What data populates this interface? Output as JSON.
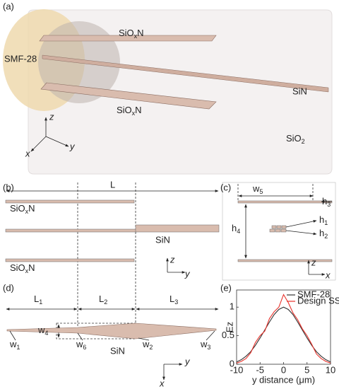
{
  "panel_labels": [
    "(a)",
    "(b)",
    "(c)",
    "(d)",
    "(e)"
  ],
  "panel_a": {
    "top_slab": [
      "SiO",
      "x",
      "N"
    ],
    "fiber": "SMF-28",
    "core": "SiN",
    "bottom_slab": [
      "SiO",
      "x",
      "N"
    ],
    "cladding": [
      "SiO",
      "2"
    ],
    "axes": [
      "z",
      "y",
      "x"
    ]
  },
  "panel_b": {
    "length": "L",
    "top_slab": [
      "SiO",
      "x",
      "N"
    ],
    "core": "SiN",
    "bottom_slab": [
      "SiO",
      "x",
      "N"
    ],
    "axes": [
      "z",
      "y"
    ]
  },
  "panel_c": {
    "width": [
      "w",
      "5"
    ],
    "h3": [
      "h",
      "3"
    ],
    "h4": [
      "h",
      "4"
    ],
    "h1": [
      "h",
      "1"
    ],
    "h2": [
      "h",
      "2"
    ],
    "axes": [
      "z",
      "x"
    ]
  },
  "panel_d": {
    "l1": [
      "L",
      "1"
    ],
    "l2": [
      "L",
      "2"
    ],
    "l3": [
      "L",
      "3"
    ],
    "w4": [
      "w",
      "4"
    ],
    "w1": [
      "w",
      "1"
    ],
    "w6": [
      "w",
      "6"
    ],
    "w2": [
      "w",
      "2"
    ],
    "w3": [
      "w",
      "3"
    ],
    "material": "SiN",
    "axes": [
      "x",
      "y"
    ]
  },
  "chart_data": {
    "type": "line",
    "y_label": "Ez",
    "x_label": "y distance (μm)",
    "x": [
      -10,
      -9,
      -8,
      -7,
      -6,
      -5,
      -4,
      -3,
      -2,
      -1,
      0,
      1,
      2,
      3,
      4,
      5,
      6,
      7,
      8,
      9,
      10
    ],
    "series": [
      {
        "name": "SMF-28",
        "color": "#333333",
        "values": [
          0.04,
          0.08,
          0.14,
          0.22,
          0.33,
          0.46,
          0.6,
          0.74,
          0.87,
          0.96,
          1.0,
          0.96,
          0.87,
          0.74,
          0.6,
          0.46,
          0.33,
          0.22,
          0.14,
          0.08,
          0.04
        ]
      },
      {
        "name": "Design SSC",
        "color": "#e8322b",
        "values": [
          0.02,
          0.05,
          0.1,
          0.2,
          0.38,
          0.5,
          0.58,
          0.8,
          0.92,
          1.0,
          1.22,
          1.08,
          0.9,
          0.78,
          0.62,
          0.5,
          0.35,
          0.18,
          0.1,
          0.05,
          0.02
        ]
      }
    ],
    "xlim": [
      -10,
      10
    ],
    "xticks": [
      -10,
      -5,
      0,
      5,
      10
    ],
    "ylim": [
      0,
      1.3
    ],
    "yticks": [
      0,
      0.5,
      1
    ],
    "legend": "top-right"
  }
}
